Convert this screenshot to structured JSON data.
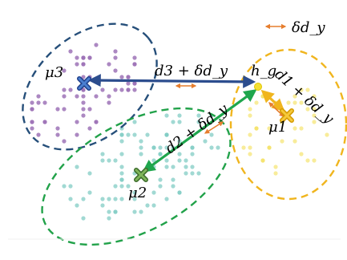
{
  "legend": {
    "label": "δd_y"
  },
  "clusters": [
    {
      "id": "mu3",
      "centroid_label": "μ3",
      "color": "#9d73b7",
      "outline_color": "#264f7a"
    },
    {
      "id": "mu2",
      "centroid_label": "μ2",
      "color": "#82ccc4",
      "outline_color": "#22a24a"
    },
    {
      "id": "mu1",
      "centroid_label": "μ1",
      "color": "#f3df57",
      "outline_color": "#f0b51e"
    }
  ],
  "query_point": {
    "label": "h_g",
    "color": "#f3e033"
  },
  "distances": [
    {
      "from": "h_g",
      "to": "mu3",
      "label": "d3 + δd_y",
      "color": "#2c4d8e"
    },
    {
      "from": "h_g",
      "to": "mu2",
      "label": "d2 + δd_y",
      "color": "#1fa64d"
    },
    {
      "from": "h_g",
      "to": "mu1",
      "label": "d1 + δd_y",
      "color": "#f0b51e"
    }
  ],
  "delta_arrow_color": "#e67e2e"
}
